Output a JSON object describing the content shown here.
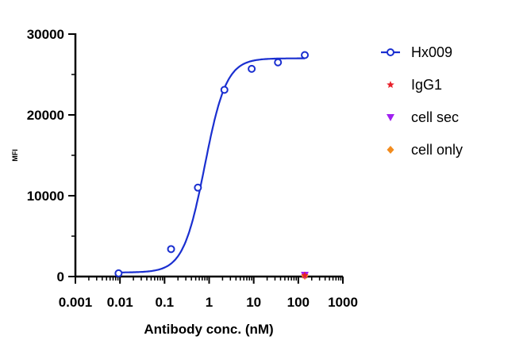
{
  "chart_data": {
    "type": "scatter",
    "title": "",
    "xlabel": "Antibody conc. (nM)",
    "ylabel": "MFI",
    "x_scale": "log",
    "xlim": [
      0.001,
      1000
    ],
    "ylim": [
      0,
      30000
    ],
    "x_ticks": [
      "0.001",
      "0.01",
      "0.1",
      "1",
      "10",
      "100",
      "1000"
    ],
    "y_ticks": [
      "0",
      "10000",
      "20000",
      "30000"
    ],
    "legend_position": "right",
    "grid": false,
    "series": [
      {
        "name": "Hx009",
        "marker": "open-circle",
        "color": "#1a2fd0",
        "fit_curve": true,
        "fit": {
          "bottom": 500,
          "top": 27000,
          "ec50": 0.8,
          "hill": 1.8
        },
        "points": [
          {
            "x": 0.0093,
            "y": 400
          },
          {
            "x": 0.14,
            "y": 3400
          },
          {
            "x": 0.56,
            "y": 11000
          },
          {
            "x": 2.2,
            "y": 23100
          },
          {
            "x": 9.0,
            "y": 25700
          },
          {
            "x": 35,
            "y": 26500
          },
          {
            "x": 140,
            "y": 27400
          }
        ]
      },
      {
        "name": "IgG1",
        "marker": "star",
        "color": "#e8202a",
        "points": [
          {
            "x": 140,
            "y": 150
          }
        ]
      },
      {
        "name": "cell sec",
        "marker": "triangle-down",
        "color": "#a020f0",
        "points": [
          {
            "x": 140,
            "y": 200
          }
        ]
      },
      {
        "name": "cell only",
        "marker": "diamond",
        "color": "#f28c1e",
        "points": [
          {
            "x": 140,
            "y": 80
          }
        ]
      }
    ]
  }
}
